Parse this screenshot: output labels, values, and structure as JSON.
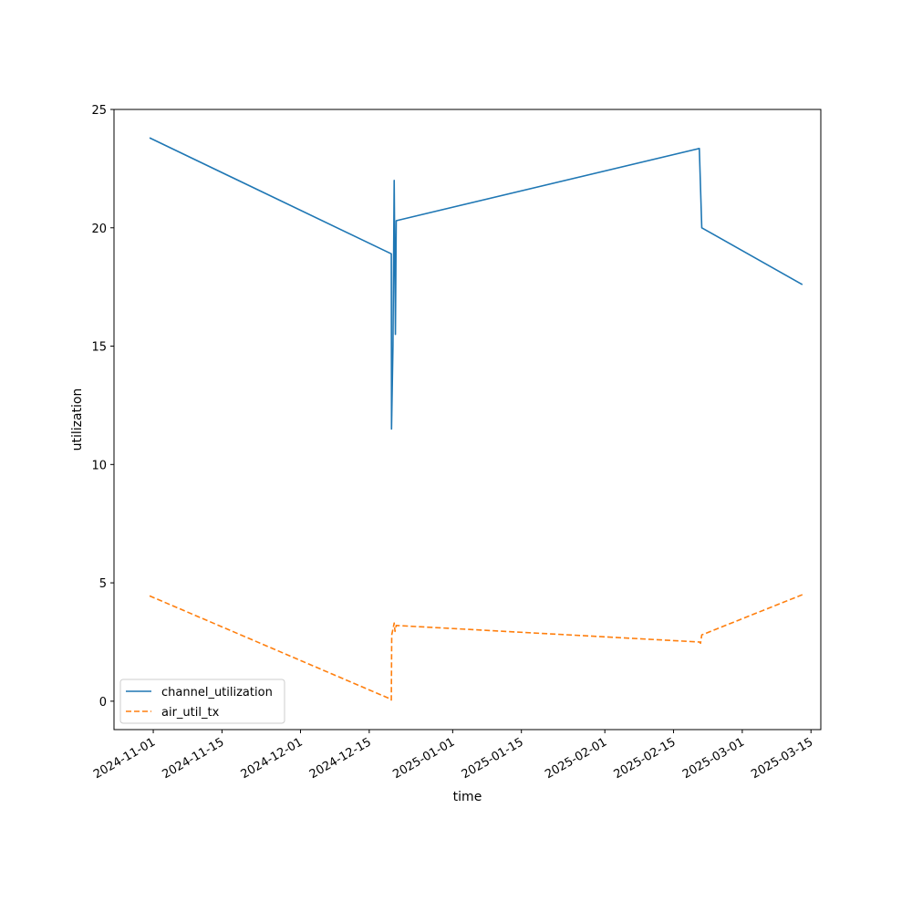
{
  "chart_data": {
    "type": "line",
    "title": "",
    "xlabel": "time",
    "ylabel": "utilization",
    "xlim": [
      "2024-10-24",
      "2025-03-17"
    ],
    "ylim": [
      -1.2,
      25
    ],
    "grid": false,
    "legend_position": "lower-left",
    "x_ticks": [
      "2024-11-01",
      "2024-11-15",
      "2024-12-01",
      "2024-12-15",
      "2025-01-01",
      "2025-01-15",
      "2025-02-01",
      "2025-02-15",
      "2025-03-01",
      "2025-03-15"
    ],
    "y_ticks": [
      0,
      5,
      10,
      15,
      20,
      25
    ],
    "series": [
      {
        "name": "channel_utilization",
        "color": "#1f77b4",
        "dash": "solid",
        "points": [
          [
            "2024-10-31T06:00",
            23.8
          ],
          [
            "2024-12-19T12:00",
            18.9
          ],
          [
            "2024-12-19T13:00",
            11.5
          ],
          [
            "2024-12-19T20:00",
            15.0
          ],
          [
            "2024-12-20T02:00",
            22.0
          ],
          [
            "2024-12-20T08:00",
            15.5
          ],
          [
            "2024-12-20T12:00",
            20.3
          ],
          [
            "2025-02-20T06:00",
            23.35
          ],
          [
            "2025-02-20T18:00",
            20.0
          ],
          [
            "2025-03-13T06:00",
            17.6
          ]
        ]
      },
      {
        "name": "air_util_tx",
        "color": "#ff7f0e",
        "dash": "dashed",
        "points": [
          [
            "2024-10-31T06:00",
            4.45
          ],
          [
            "2024-12-19T06:00",
            0.1
          ],
          [
            "2024-12-19T12:00",
            0.05
          ],
          [
            "2024-12-19T14:00",
            2.8
          ],
          [
            "2024-12-20T02:00",
            3.3
          ],
          [
            "2024-12-20T06:00",
            2.95
          ],
          [
            "2024-12-20T12:00",
            3.2
          ],
          [
            "2025-02-20T06:00",
            2.5
          ],
          [
            "2025-02-20T12:00",
            2.45
          ],
          [
            "2025-02-20T18:00",
            2.8
          ],
          [
            "2025-03-13T06:00",
            4.5
          ]
        ]
      }
    ]
  }
}
